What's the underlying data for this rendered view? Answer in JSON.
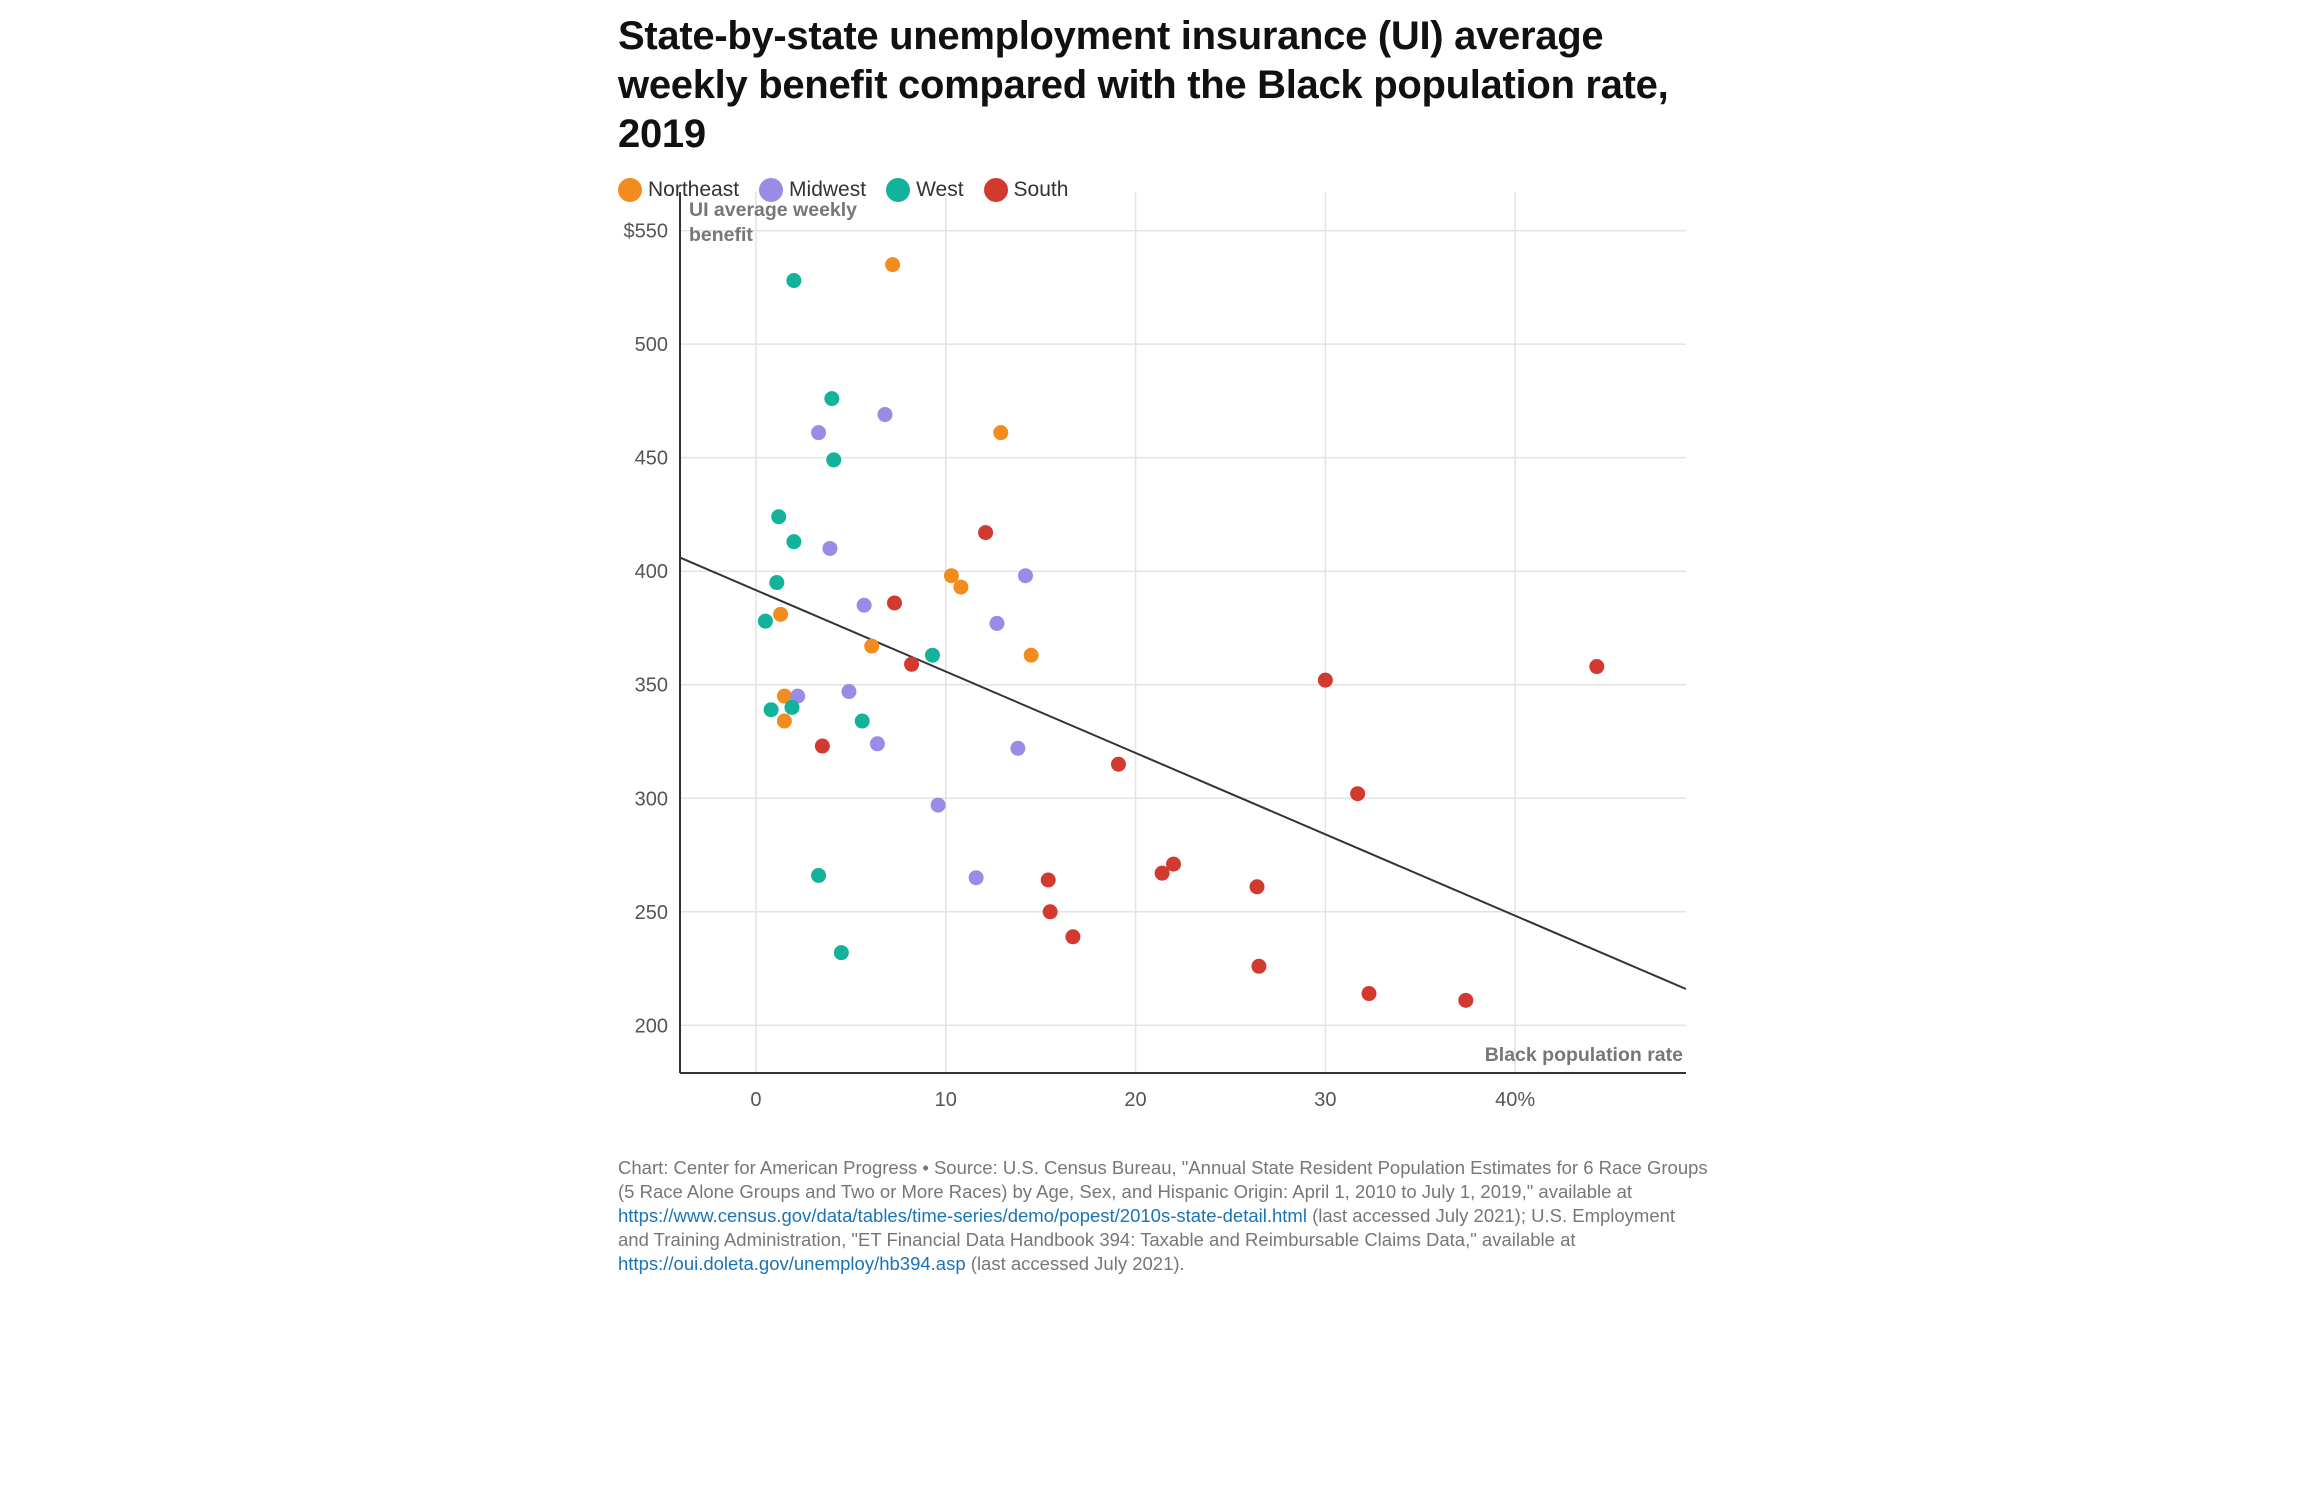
{
  "chart_data": {
    "type": "scatter",
    "title": "State-by-state unemployment insurance (UI) average weekly benefit compared with the Black population rate, 2019",
    "xlabel": "Black population rate",
    "ylabel": "UI average weekly benefit",
    "xlim": [
      -4,
      49
    ],
    "ylim": [
      179,
      567
    ],
    "x_ticks": [
      0,
      10,
      20,
      30,
      40
    ],
    "x_tick_labels": [
      "0",
      "10",
      "20",
      "30",
      "40%"
    ],
    "y_ticks": [
      200,
      250,
      300,
      350,
      400,
      450,
      500,
      550
    ],
    "y_tick_labels": [
      "200",
      "250",
      "300",
      "350",
      "400",
      "450",
      "500",
      "$550"
    ],
    "grid": true,
    "legend_position": "top-left",
    "trendline": {
      "x": [
        -4,
        49
      ],
      "y": [
        406,
        216
      ]
    },
    "series": [
      {
        "name": "Northeast",
        "color": "#f28c1e",
        "points": [
          [
            7.2,
            535
          ],
          [
            12.9,
            461
          ],
          [
            10.3,
            398
          ],
          [
            10.8,
            393
          ],
          [
            1.3,
            381
          ],
          [
            6.1,
            367
          ],
          [
            14.5,
            363
          ],
          [
            1.5,
            345
          ],
          [
            1.5,
            334
          ]
        ]
      },
      {
        "name": "Midwest",
        "color": "#9b8ae6",
        "points": [
          [
            6.8,
            469
          ],
          [
            3.3,
            461
          ],
          [
            3.9,
            410
          ],
          [
            14.2,
            398
          ],
          [
            5.7,
            385
          ],
          [
            12.7,
            377
          ],
          [
            2.2,
            345
          ],
          [
            4.9,
            347
          ],
          [
            6.4,
            324
          ],
          [
            13.8,
            322
          ],
          [
            9.6,
            297
          ],
          [
            11.6,
            265
          ]
        ]
      },
      {
        "name": "West",
        "color": "#12b29b",
        "points": [
          [
            2.0,
            528
          ],
          [
            4.0,
            476
          ],
          [
            4.1,
            449
          ],
          [
            1.2,
            424
          ],
          [
            2.0,
            413
          ],
          [
            1.1,
            395
          ],
          [
            0.5,
            378
          ],
          [
            9.3,
            363
          ],
          [
            0.8,
            339
          ],
          [
            1.9,
            340
          ],
          [
            5.6,
            334
          ],
          [
            3.3,
            266
          ],
          [
            4.5,
            232
          ]
        ]
      },
      {
        "name": "South",
        "color": "#d33a2f",
        "points": [
          [
            12.1,
            417
          ],
          [
            7.3,
            386
          ],
          [
            8.2,
            359
          ],
          [
            44.3,
            358
          ],
          [
            30.0,
            352
          ],
          [
            3.5,
            323
          ],
          [
            19.1,
            315
          ],
          [
            31.7,
            302
          ],
          [
            22.0,
            271
          ],
          [
            21.4,
            267
          ],
          [
            15.4,
            264
          ],
          [
            26.4,
            261
          ],
          [
            15.5,
            250
          ],
          [
            16.7,
            239
          ],
          [
            26.5,
            226
          ],
          [
            32.3,
            214
          ],
          [
            37.4,
            211
          ]
        ]
      }
    ]
  },
  "source": {
    "text_1": "Chart: Center for American Progress • Source: U.S. Census Bureau, \"Annual State Resident Population Estimates for 6 Race Groups (5 Race Alone Groups and Two or More Races) by Age, Sex, and Hispanic Origin: April 1, 2010 to July 1, 2019,\" available at ",
    "link_1": "https://www.census.gov/data/tables/time-series/demo/popest/2010s-state-detail.html",
    "text_2": " (last accessed July 2021); U.S. Employment and Training Administration, \"ET Financial Data Handbook 394: Taxable and Reimbursable Claims Data,\" available at ",
    "link_2": "https://oui.doleta.gov/unemploy/hb394.asp",
    "text_3": " (last accessed July 2021)."
  }
}
